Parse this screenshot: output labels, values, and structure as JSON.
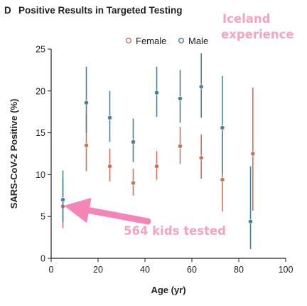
{
  "panel": {
    "letter": "D",
    "title": "Positive Results in Targeted Testing"
  },
  "annotations": {
    "top_right": [
      "Iceland",
      "experience"
    ],
    "arrow_label": "564 kids tested",
    "color": "#f584b8"
  },
  "colors": {
    "Female": "#c8755a",
    "Male": "#4d7f9a",
    "axis": "#222222"
  },
  "chart_data": {
    "type": "scatter",
    "title": "Positive Results in Targeted Testing",
    "xlabel": "Age (yr)",
    "ylabel": "SARS-CoV-2 Positive (%)",
    "xlim": [
      0,
      100
    ],
    "ylim": [
      0,
      25
    ],
    "xticks": [
      0,
      20,
      40,
      60,
      80,
      100
    ],
    "yticks": [
      0,
      5,
      10,
      15,
      20,
      25
    ],
    "grid": false,
    "legend": "top-center",
    "error_bars": true,
    "series": [
      {
        "name": "Female",
        "points": [
          {
            "x": 5,
            "y": 6.2,
            "low": 3.6,
            "high": 9.6
          },
          {
            "x": 15,
            "y": 13.5,
            "low": 10.4,
            "high": 17.3
          },
          {
            "x": 25,
            "y": 11.0,
            "low": 9.2,
            "high": 13.1
          },
          {
            "x": 35,
            "y": 9.0,
            "low": 7.5,
            "high": 10.7
          },
          {
            "x": 45,
            "y": 11.0,
            "low": 9.4,
            "high": 12.8
          },
          {
            "x": 55,
            "y": 13.4,
            "low": 11.3,
            "high": 15.7
          },
          {
            "x": 64,
            "y": 12.0,
            "low": 9.5,
            "high": 14.8
          },
          {
            "x": 73,
            "y": 9.4,
            "low": 5.6,
            "high": 15.0
          },
          {
            "x": 86,
            "y": 12.5,
            "low": 5.7,
            "high": 20.4
          }
        ]
      },
      {
        "name": "Male",
        "points": [
          {
            "x": 5,
            "y": 7.0,
            "low": 4.3,
            "high": 10.5
          },
          {
            "x": 15,
            "y": 18.6,
            "low": 15.0,
            "high": 22.9
          },
          {
            "x": 25,
            "y": 16.8,
            "low": 13.9,
            "high": 20.0
          },
          {
            "x": 35,
            "y": 13.9,
            "low": 11.5,
            "high": 16.7
          },
          {
            "x": 45,
            "y": 19.8,
            "low": 16.9,
            "high": 22.9
          },
          {
            "x": 55,
            "y": 19.1,
            "low": 16.2,
            "high": 22.5
          },
          {
            "x": 64,
            "y": 20.5,
            "low": 16.8,
            "high": 24.5
          },
          {
            "x": 73,
            "y": 15.6,
            "low": 10.1,
            "high": 21.8
          },
          {
            "x": 85,
            "y": 4.4,
            "low": 1.1,
            "high": 11.0
          }
        ]
      }
    ]
  }
}
